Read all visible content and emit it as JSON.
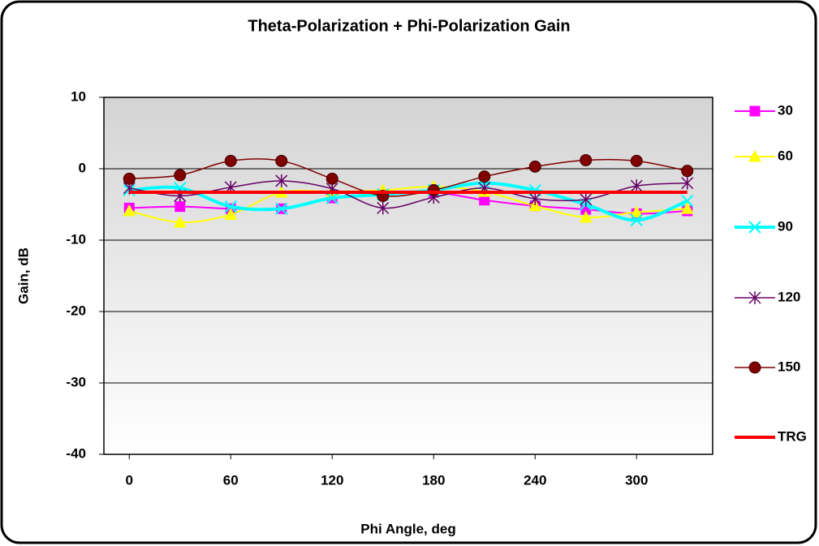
{
  "chart_data": {
    "type": "line",
    "title": "Theta-Polarization + Phi-Polarization Gain",
    "xlabel": "Phi Angle, deg",
    "ylabel": "Gain, dB",
    "x": [
      0,
      30,
      60,
      90,
      120,
      150,
      180,
      210,
      240,
      270,
      300,
      330
    ],
    "xlim": [
      -15,
      345
    ],
    "xticks": [
      0,
      60,
      120,
      180,
      240,
      300
    ],
    "ylim": [
      -40,
      10
    ],
    "yticks": [
      -40,
      -30,
      -20,
      -10,
      0,
      10
    ],
    "grid": true,
    "smooth": true,
    "legend": "right",
    "series": [
      {
        "name": "30",
        "color": "#ff00ff",
        "marker": "square",
        "width": 2,
        "values": [
          -5.5,
          -5.3,
          -5.6,
          -5.6,
          -4.1,
          -3.6,
          -3.3,
          -4.4,
          -5.2,
          -5.7,
          -6.3,
          -5.9
        ]
      },
      {
        "name": "60",
        "color": "#ffff00",
        "marker": "triangle",
        "width": 2,
        "values": [
          -5.9,
          -7.5,
          -6.4,
          -3.3,
          -3.2,
          -3.0,
          -2.5,
          -3.2,
          -5.2,
          -6.8,
          -6.1,
          -5.6
        ]
      },
      {
        "name": "90",
        "color": "#00ffff",
        "marker": "x",
        "width": 4,
        "values": [
          -3.0,
          -2.7,
          -5.3,
          -5.6,
          -4.1,
          -3.6,
          -3.0,
          -2.0,
          -3.0,
          -5.0,
          -7.2,
          -4.5
        ]
      },
      {
        "name": "120",
        "color": "#660066",
        "marker": "star",
        "width": 1.5,
        "values": [
          -2.7,
          -3.8,
          -2.6,
          -1.7,
          -2.8,
          -5.5,
          -4.0,
          -2.7,
          -4.2,
          -4.3,
          -2.4,
          -2.0
        ]
      },
      {
        "name": "150",
        "color": "#800000",
        "marker": "circle",
        "width": 1.5,
        "values": [
          -1.4,
          -0.9,
          1.1,
          1.1,
          -1.4,
          -3.8,
          -3.0,
          -1.1,
          0.3,
          1.2,
          1.1,
          -0.3
        ]
      },
      {
        "name": "TRG",
        "color": "#ff0000",
        "marker": "none",
        "width": 4,
        "values": [
          -3.3,
          -3.3,
          -3.3,
          -3.3,
          -3.3,
          -3.3,
          -3.3,
          -3.3,
          -3.3,
          -3.3,
          -3.3,
          -3.3
        ]
      }
    ]
  }
}
